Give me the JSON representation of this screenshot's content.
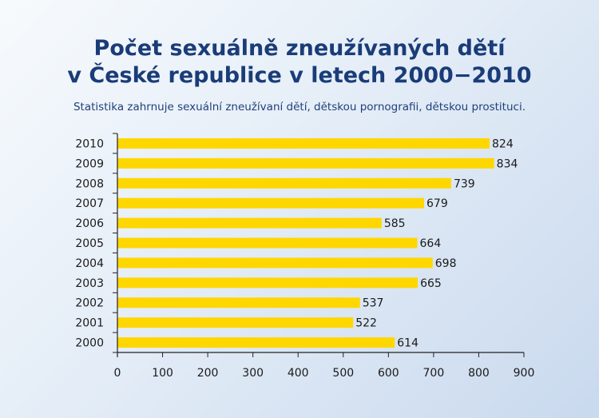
{
  "chart_data": {
    "type": "bar",
    "orientation": "horizontal",
    "title_line1": "Počet sexuálně zneužívaných dětí",
    "title_line2": "v České republice v letech 2000−2010",
    "subtitle": "Statistika zahrnuje sexuální zneužívaní dětí, dětskou pornografii, dětskou prostituci.",
    "categories": [
      "2010",
      "2009",
      "2008",
      "2007",
      "2006",
      "2005",
      "2004",
      "2003",
      "2002",
      "2001",
      "2000"
    ],
    "values": [
      824,
      834,
      739,
      679,
      585,
      664,
      698,
      665,
      537,
      522,
      614
    ],
    "xlim": [
      0,
      900
    ],
    "xticks": [
      "0",
      "100",
      "200",
      "300",
      "400",
      "500",
      "600",
      "700",
      "800",
      "900"
    ],
    "grid": false,
    "bar_color": "#ffd700"
  }
}
